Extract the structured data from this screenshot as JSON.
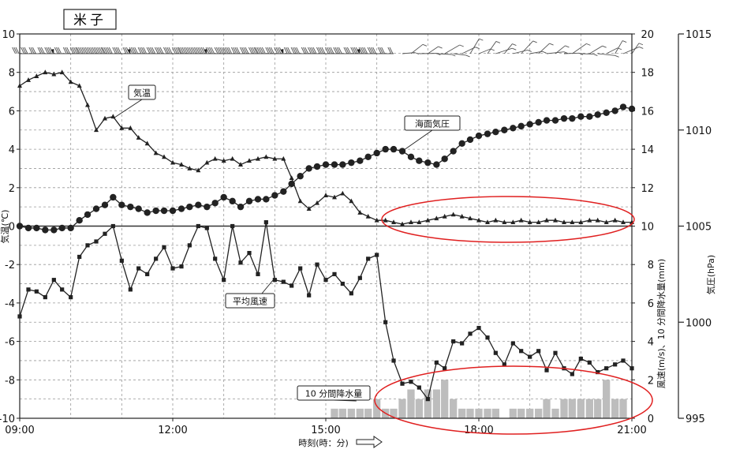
{
  "station_title": "米子",
  "chart_data": {
    "type": "line",
    "xlabel": "時刻(時：分)",
    "x_ticks": [
      "09:00",
      "12:00",
      "15:00",
      "18:00",
      "21:00"
    ],
    "x_range_hours": [
      9,
      21
    ],
    "left_axis": {
      "label": "気温(℃)",
      "range": [
        -10,
        10
      ],
      "ticks": [
        -10,
        -8,
        -6,
        -4,
        -2,
        0,
        2,
        4,
        6,
        8,
        10
      ]
    },
    "mid_axis": {
      "label": "風速(m/s)、10 分間降水量(mm)",
      "range": [
        0,
        20
      ],
      "ticks": [
        0,
        2,
        4,
        6,
        8,
        10,
        12,
        14,
        16,
        18,
        20
      ]
    },
    "right_axis": {
      "label": "気圧(hPa)",
      "range": [
        995,
        1015
      ],
      "ticks": [
        995,
        1000,
        1005,
        1010,
        1015
      ]
    },
    "series": [
      {
        "name": "気温",
        "axis": "left",
        "marker": "triangle",
        "points": [
          [
            9.0,
            7.3
          ],
          [
            9.17,
            7.6
          ],
          [
            9.33,
            7.8
          ],
          [
            9.5,
            8.0
          ],
          [
            9.67,
            7.9
          ],
          [
            9.83,
            8.0
          ],
          [
            10.0,
            7.5
          ],
          [
            10.17,
            7.3
          ],
          [
            10.33,
            6.3
          ],
          [
            10.5,
            5.0
          ],
          [
            10.67,
            5.6
          ],
          [
            10.83,
            5.7
          ],
          [
            11.0,
            5.1
          ],
          [
            11.17,
            5.1
          ],
          [
            11.33,
            4.6
          ],
          [
            11.5,
            4.3
          ],
          [
            11.67,
            3.8
          ],
          [
            11.83,
            3.6
          ],
          [
            12.0,
            3.3
          ],
          [
            12.17,
            3.2
          ],
          [
            12.33,
            3.0
          ],
          [
            12.5,
            2.9
          ],
          [
            12.67,
            3.3
          ],
          [
            12.83,
            3.5
          ],
          [
            13.0,
            3.4
          ],
          [
            13.17,
            3.5
          ],
          [
            13.33,
            3.2
          ],
          [
            13.5,
            3.4
          ],
          [
            13.67,
            3.5
          ],
          [
            13.83,
            3.6
          ],
          [
            14.0,
            3.5
          ],
          [
            14.17,
            3.5
          ],
          [
            14.33,
            2.5
          ],
          [
            14.5,
            1.3
          ],
          [
            14.67,
            0.9
          ],
          [
            14.83,
            1.2
          ],
          [
            15.0,
            1.6
          ],
          [
            15.17,
            1.5
          ],
          [
            15.33,
            1.7
          ],
          [
            15.5,
            1.3
          ],
          [
            15.67,
            0.7
          ],
          [
            15.83,
            0.5
          ],
          [
            16.0,
            0.3
          ],
          [
            16.17,
            0.3
          ],
          [
            16.33,
            0.2
          ],
          [
            16.5,
            0.1
          ],
          [
            16.67,
            0.2
          ],
          [
            16.83,
            0.2
          ],
          [
            17.0,
            0.3
          ],
          [
            17.17,
            0.4
          ],
          [
            17.33,
            0.5
          ],
          [
            17.5,
            0.6
          ],
          [
            17.67,
            0.5
          ],
          [
            17.83,
            0.4
          ],
          [
            18.0,
            0.3
          ],
          [
            18.17,
            0.2
          ],
          [
            18.33,
            0.3
          ],
          [
            18.5,
            0.2
          ],
          [
            18.67,
            0.2
          ],
          [
            18.83,
            0.3
          ],
          [
            19.0,
            0.2
          ],
          [
            19.17,
            0.2
          ],
          [
            19.33,
            0.3
          ],
          [
            19.5,
            0.3
          ],
          [
            19.67,
            0.2
          ],
          [
            19.83,
            0.2
          ],
          [
            20.0,
            0.2
          ],
          [
            20.17,
            0.3
          ],
          [
            20.33,
            0.3
          ],
          [
            20.5,
            0.2
          ],
          [
            20.67,
            0.3
          ],
          [
            20.83,
            0.2
          ],
          [
            21.0,
            0.2
          ]
        ]
      },
      {
        "name": "海面気圧",
        "axis": "right",
        "marker": "circle",
        "points": [
          [
            9.0,
            1005.0
          ],
          [
            9.17,
            1004.9
          ],
          [
            9.33,
            1004.9
          ],
          [
            9.5,
            1004.8
          ],
          [
            9.67,
            1004.8
          ],
          [
            9.83,
            1004.9
          ],
          [
            10.0,
            1004.9
          ],
          [
            10.17,
            1005.3
          ],
          [
            10.33,
            1005.6
          ],
          [
            10.5,
            1005.9
          ],
          [
            10.67,
            1006.1
          ],
          [
            10.83,
            1006.5
          ],
          [
            11.0,
            1006.1
          ],
          [
            11.17,
            1006.0
          ],
          [
            11.33,
            1005.9
          ],
          [
            11.5,
            1005.7
          ],
          [
            11.67,
            1005.8
          ],
          [
            11.83,
            1005.8
          ],
          [
            12.0,
            1005.8
          ],
          [
            12.17,
            1005.9
          ],
          [
            12.33,
            1006.0
          ],
          [
            12.5,
            1006.1
          ],
          [
            12.67,
            1006.0
          ],
          [
            12.83,
            1006.2
          ],
          [
            13.0,
            1006.5
          ],
          [
            13.17,
            1006.3
          ],
          [
            13.33,
            1006.0
          ],
          [
            13.5,
            1006.3
          ],
          [
            13.67,
            1006.4
          ],
          [
            13.83,
            1006.4
          ],
          [
            14.0,
            1006.6
          ],
          [
            14.17,
            1006.8
          ],
          [
            14.33,
            1007.2
          ],
          [
            14.5,
            1007.6
          ],
          [
            14.67,
            1008.0
          ],
          [
            14.83,
            1008.1
          ],
          [
            15.0,
            1008.2
          ],
          [
            15.17,
            1008.2
          ],
          [
            15.33,
            1008.2
          ],
          [
            15.5,
            1008.3
          ],
          [
            15.67,
            1008.4
          ],
          [
            15.83,
            1008.6
          ],
          [
            16.0,
            1008.8
          ],
          [
            16.17,
            1009.0
          ],
          [
            16.33,
            1009.0
          ],
          [
            16.5,
            1008.9
          ],
          [
            16.67,
            1008.6
          ],
          [
            16.83,
            1008.4
          ],
          [
            17.0,
            1008.3
          ],
          [
            17.17,
            1008.2
          ],
          [
            17.33,
            1008.5
          ],
          [
            17.5,
            1008.9
          ],
          [
            17.67,
            1009.3
          ],
          [
            17.83,
            1009.5
          ],
          [
            18.0,
            1009.7
          ],
          [
            18.17,
            1009.8
          ],
          [
            18.33,
            1009.9
          ],
          [
            18.5,
            1010.0
          ],
          [
            18.67,
            1010.1
          ],
          [
            18.83,
            1010.2
          ],
          [
            19.0,
            1010.3
          ],
          [
            19.17,
            1010.4
          ],
          [
            19.33,
            1010.5
          ],
          [
            19.5,
            1010.5
          ],
          [
            19.67,
            1010.6
          ],
          [
            19.83,
            1010.6
          ],
          [
            20.0,
            1010.7
          ],
          [
            20.17,
            1010.7
          ],
          [
            20.33,
            1010.8
          ],
          [
            20.5,
            1010.9
          ],
          [
            20.67,
            1011.0
          ],
          [
            20.83,
            1011.2
          ],
          [
            21.0,
            1011.1
          ]
        ]
      },
      {
        "name": "平均風速",
        "axis": "mid",
        "marker": "square",
        "points": [
          [
            9.0,
            5.3
          ],
          [
            9.17,
            6.7
          ],
          [
            9.33,
            6.6
          ],
          [
            9.5,
            6.3
          ],
          [
            9.67,
            7.2
          ],
          [
            9.83,
            6.7
          ],
          [
            10.0,
            6.3
          ],
          [
            10.17,
            8.4
          ],
          [
            10.33,
            9.0
          ],
          [
            10.5,
            9.2
          ],
          [
            10.67,
            9.6
          ],
          [
            10.83,
            10.0
          ],
          [
            11.0,
            8.2
          ],
          [
            11.17,
            6.7
          ],
          [
            11.33,
            7.8
          ],
          [
            11.5,
            7.5
          ],
          [
            11.67,
            8.3
          ],
          [
            11.83,
            8.9
          ],
          [
            12.0,
            7.8
          ],
          [
            12.17,
            7.9
          ],
          [
            12.33,
            9.0
          ],
          [
            12.5,
            10.0
          ],
          [
            12.67,
            9.9
          ],
          [
            12.83,
            8.3
          ],
          [
            13.0,
            7.2
          ],
          [
            13.17,
            10.0
          ],
          [
            13.33,
            8.1
          ],
          [
            13.5,
            8.6
          ],
          [
            13.67,
            7.5
          ],
          [
            13.83,
            10.2
          ],
          [
            14.0,
            7.2
          ],
          [
            14.17,
            7.1
          ],
          [
            14.33,
            6.9
          ],
          [
            14.5,
            7.8
          ],
          [
            14.67,
            6.4
          ],
          [
            14.83,
            8.0
          ],
          [
            15.0,
            7.2
          ],
          [
            15.17,
            7.5
          ],
          [
            15.33,
            7.0
          ],
          [
            15.5,
            6.5
          ],
          [
            15.67,
            7.3
          ],
          [
            15.83,
            8.3
          ],
          [
            16.0,
            8.5
          ],
          [
            16.17,
            5.0
          ],
          [
            16.33,
            3.0
          ],
          [
            16.5,
            1.8
          ],
          [
            16.67,
            1.9
          ],
          [
            16.83,
            1.6
          ],
          [
            17.0,
            1.0
          ],
          [
            17.17,
            2.9
          ],
          [
            17.33,
            2.6
          ],
          [
            17.5,
            4.0
          ],
          [
            17.67,
            3.9
          ],
          [
            17.83,
            4.4
          ],
          [
            18.0,
            4.7
          ],
          [
            18.17,
            4.2
          ],
          [
            18.33,
            3.4
          ],
          [
            18.5,
            2.8
          ],
          [
            18.67,
            3.9
          ],
          [
            18.83,
            3.5
          ],
          [
            19.0,
            3.2
          ],
          [
            19.17,
            3.5
          ],
          [
            19.33,
            2.5
          ],
          [
            19.5,
            3.4
          ],
          [
            19.67,
            2.6
          ],
          [
            19.83,
            2.3
          ],
          [
            20.0,
            3.1
          ],
          [
            20.17,
            2.9
          ],
          [
            20.33,
            2.4
          ],
          [
            20.5,
            2.6
          ],
          [
            20.67,
            2.8
          ],
          [
            20.83,
            3.0
          ],
          [
            21.0,
            2.6
          ]
        ]
      },
      {
        "name": "10 分間降水量",
        "axis": "mid",
        "type": "bar",
        "points": [
          [
            15.17,
            0.5
          ],
          [
            15.33,
            0.5
          ],
          [
            15.5,
            0.5
          ],
          [
            15.67,
            0.5
          ],
          [
            15.83,
            0.5
          ],
          [
            16.0,
            1.0
          ],
          [
            16.17,
            0.5
          ],
          [
            16.33,
            0.5
          ],
          [
            16.5,
            1.0
          ],
          [
            16.67,
            1.5
          ],
          [
            16.83,
            1.0
          ],
          [
            17.0,
            1.5
          ],
          [
            17.17,
            1.5
          ],
          [
            17.33,
            2.0
          ],
          [
            17.5,
            1.0
          ],
          [
            17.67,
            0.5
          ],
          [
            17.83,
            0.5
          ],
          [
            18.0,
            0.5
          ],
          [
            18.17,
            0.5
          ],
          [
            18.33,
            0.5
          ],
          [
            18.67,
            0.5
          ],
          [
            18.83,
            0.5
          ],
          [
            19.0,
            0.5
          ],
          [
            19.17,
            0.5
          ],
          [
            19.33,
            1.0
          ],
          [
            19.5,
            0.5
          ],
          [
            19.67,
            1.0
          ],
          [
            19.83,
            1.0
          ],
          [
            20.0,
            1.0
          ],
          [
            20.17,
            1.0
          ],
          [
            20.33,
            1.0
          ],
          [
            20.5,
            2.0
          ],
          [
            20.67,
            1.0
          ],
          [
            20.83,
            1.0
          ]
        ]
      }
    ],
    "annotations": [
      "気温",
      "海面気圧",
      "平均風速",
      "10 分間降水量"
    ],
    "highlight_color": "#e02020",
    "line_color": "#222222",
    "bar_color": "#bdbdbd"
  }
}
